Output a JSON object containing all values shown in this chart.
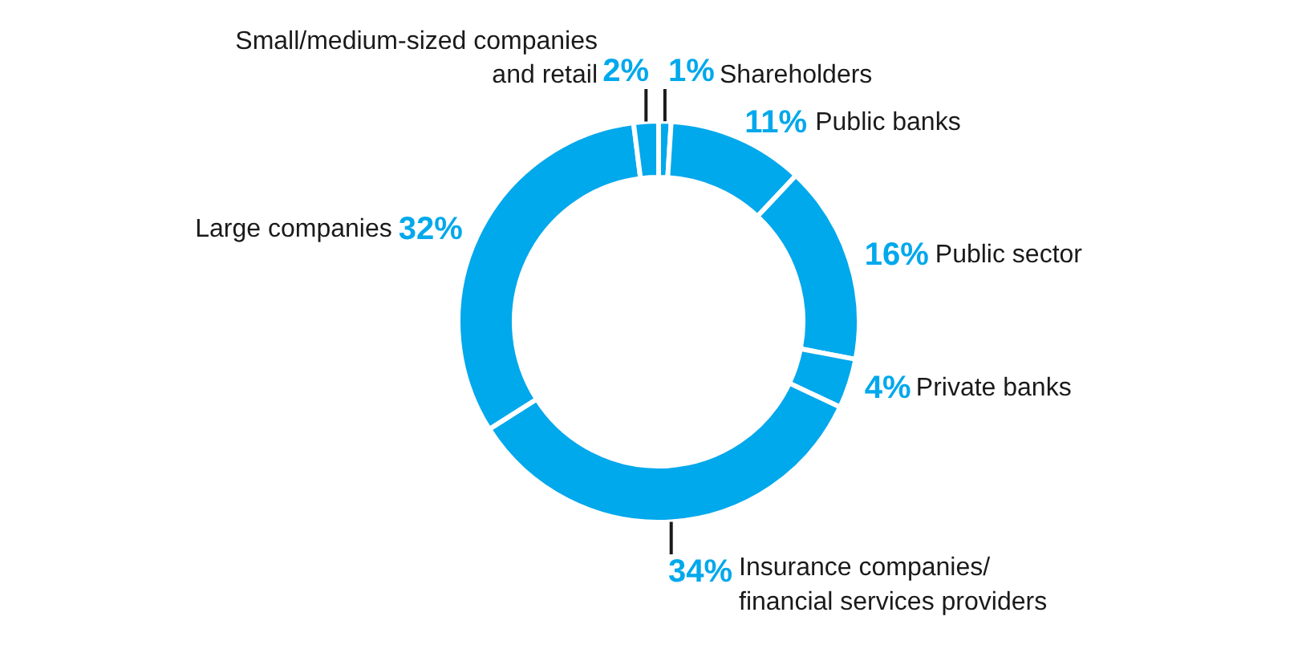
{
  "chart_data": {
    "type": "donut",
    "categories": [
      "Shareholders",
      "Public banks",
      "Public sector",
      "Private banks",
      "Insurance companies/\nfinancial services providers",
      "Large companies",
      "Small/medium-sized companies\nand retail"
    ],
    "values": [
      1,
      11,
      16,
      4,
      34,
      32,
      2
    ],
    "value_labels": [
      "1%",
      "11%",
      "16%",
      "4%",
      "34%",
      "32%",
      "2%"
    ],
    "colors": [
      "#00a8ec",
      "#00a8ec",
      "#00a8ec",
      "#00a8ec",
      "#00a8ec",
      "#00a8ec",
      "#00a8ec"
    ]
  }
}
